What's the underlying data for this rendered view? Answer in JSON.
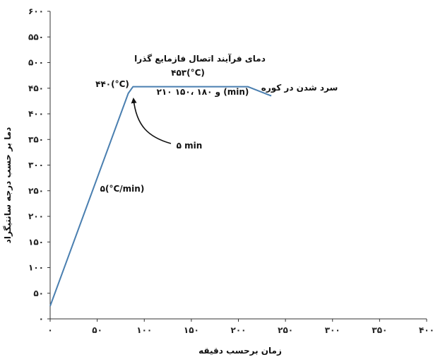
{
  "chart_data": {
    "type": "line",
    "xlabel": "زمان برحسب دقیقه",
    "ylabel": "دما بر حسب درجه سانتیگراد",
    "xlim": [
      0,
      400
    ],
    "ylim": [
      0,
      600
    ],
    "xticks": [
      0,
      50,
      100,
      150,
      200,
      250,
      300,
      350,
      400
    ],
    "yticks": [
      0,
      50,
      100,
      150,
      200,
      250,
      300,
      350,
      400,
      450,
      500,
      550,
      600
    ],
    "xtick_labels": [
      "۰",
      "۵۰",
      "۱۰۰",
      "۱۵۰",
      "۲۰۰",
      "۲۵۰",
      "۳۰۰",
      "۳۵۰",
      "۴۰۰"
    ],
    "ytick_labels": [
      "۰",
      "۵۰",
      "۱۰۰",
      "۱۵۰",
      "۲۰۰",
      "۲۵۰",
      "۳۰۰",
      "۳۵۰",
      "۴۰۰",
      "۴۵۰",
      "۵۰۰",
      "۵۵۰",
      "۶۰۰"
    ],
    "grid": false,
    "series": [
      {
        "color": "#4a7fb0",
        "points": [
          {
            "x": 0,
            "y": 25
          },
          {
            "x": 83,
            "y": 440
          },
          {
            "x": 88,
            "y": 453
          },
          {
            "x": 210,
            "y": 453
          },
          {
            "x": 235,
            "y": 435
          }
        ]
      }
    ],
    "annotations": {
      "process_title": "دمای فرآیند اتصال فازمایع گذرا",
      "process_temp": "۴۵۳(°C)",
      "hold_times": "۲۱۰ و ۱۸۰ ،۱۵۰ (min)",
      "cooling": "سرد شدن در کوره",
      "peak": "۴۴۰(°C)",
      "ramp_rate": "۵(°C/min)",
      "dwell": "۵ min"
    }
  }
}
